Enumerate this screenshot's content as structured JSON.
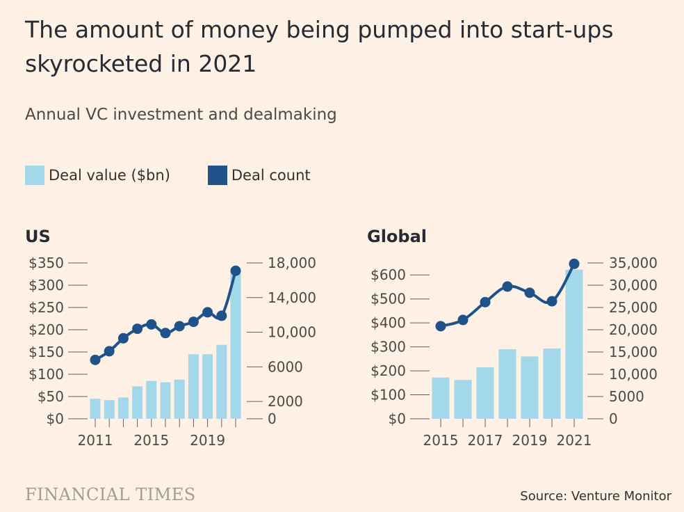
{
  "title": "The amount of money being pumped into start-ups skyrocketed in 2021",
  "subtitle": "Annual VC investment and dealmaking",
  "legend": {
    "deal_value": "Deal value ($bn)",
    "deal_count": "Deal count"
  },
  "colors": {
    "bar": "#a3d8ea",
    "line": "#1f5289",
    "background": "#fff1e5",
    "axis": "#66605c"
  },
  "source": "Source: Venture Monitor",
  "publisher": "FINANCIAL TIMES",
  "chart_data": [
    {
      "type": "bar",
      "panel": "US",
      "title": "US",
      "years": [
        2011,
        2012,
        2013,
        2014,
        2015,
        2016,
        2017,
        2018,
        2019,
        2020,
        2021
      ],
      "x_tick_labels": [
        "2011",
        "2015",
        "2019"
      ],
      "series": [
        {
          "name": "Deal value ($bn)",
          "axis": "left",
          "values": [
            45,
            42,
            48,
            73,
            85,
            82,
            88,
            145,
            145,
            166,
            330
          ]
        },
        {
          "name": "Deal count",
          "axis": "right",
          "values": [
            6800,
            7800,
            9300,
            10400,
            10900,
            9900,
            10700,
            11200,
            12300,
            11900,
            17100
          ]
        }
      ],
      "left_axis": {
        "ylim": [
          0,
          350
        ],
        "ticks": [
          0,
          50,
          100,
          150,
          200,
          250,
          300,
          350
        ],
        "tick_labels": [
          "$0",
          "$50",
          "$100",
          "$150",
          "$200",
          "$250",
          "$300",
          "$350"
        ]
      },
      "right_axis": {
        "ylim": [
          0,
          18000
        ],
        "ticks": [
          0,
          2000,
          6000,
          10000,
          14000,
          18000
        ],
        "tick_labels": [
          "0",
          "2000",
          "6000",
          "10,000",
          "14,000",
          "18,000"
        ]
      }
    },
    {
      "type": "bar",
      "panel": "Global",
      "title": "Global",
      "years": [
        2015,
        2016,
        2017,
        2018,
        2019,
        2020,
        2021
      ],
      "x_tick_labels": [
        "2015",
        "2017",
        "2019",
        "2021"
      ],
      "series": [
        {
          "name": "Deal value ($bn)",
          "axis": "left",
          "values": [
            172,
            162,
            215,
            290,
            260,
            293,
            622
          ]
        },
        {
          "name": "Deal count",
          "axis": "right",
          "values": [
            20800,
            22200,
            26200,
            29700,
            28300,
            26400,
            34800
          ]
        }
      ],
      "left_axis": {
        "ylim": [
          0,
          650
        ],
        "ticks": [
          0,
          100,
          200,
          300,
          400,
          500,
          600
        ],
        "tick_labels": [
          "$0",
          "$100",
          "$200",
          "$300",
          "$400",
          "$500",
          "$600"
        ]
      },
      "right_axis": {
        "ylim": [
          0,
          35000
        ],
        "ticks": [
          0,
          5000,
          10000,
          15000,
          20000,
          25000,
          30000,
          35000
        ],
        "tick_labels": [
          "0",
          "5000",
          "10,000",
          "15,000",
          "20,000",
          "25,000",
          "30,000",
          "35,000"
        ]
      }
    }
  ]
}
